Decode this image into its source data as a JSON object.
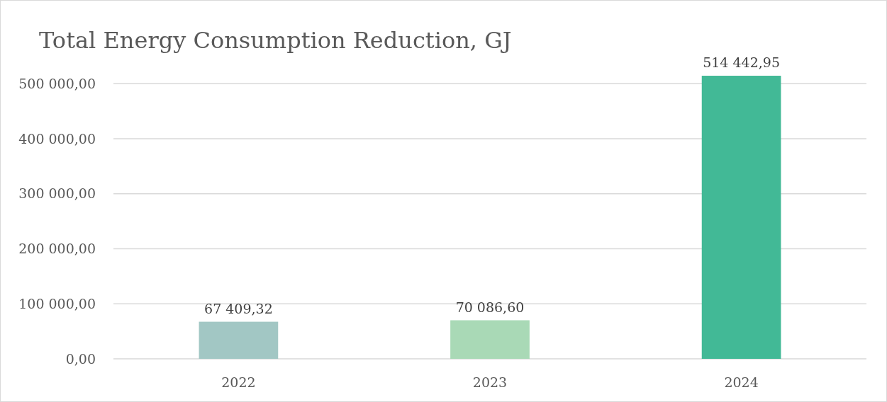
{
  "chart_data": {
    "type": "bar",
    "title": "Total Energy Consumption Reduction, GJ",
    "categories": [
      "2022",
      "2023",
      "2024"
    ],
    "values": [
      67409.32,
      70086.6,
      514442.95
    ],
    "value_labels": [
      "67 409,32",
      "70 086,60",
      "514 442,95"
    ],
    "colors": [
      "#a2c7c4",
      "#a9d9b6",
      "#42b996"
    ],
    "ylim": [
      0,
      514442.95
    ],
    "yticks": [
      {
        "value": 0,
        "label": "0,00"
      },
      {
        "value": 100000,
        "label": "100 000,00"
      },
      {
        "value": 200000,
        "label": "200 000,00"
      },
      {
        "value": 300000,
        "label": "300 000,00"
      },
      {
        "value": 400000,
        "label": "400 000,00"
      },
      {
        "value": 500000,
        "label": "500 000,00"
      }
    ],
    "grid": "y"
  }
}
